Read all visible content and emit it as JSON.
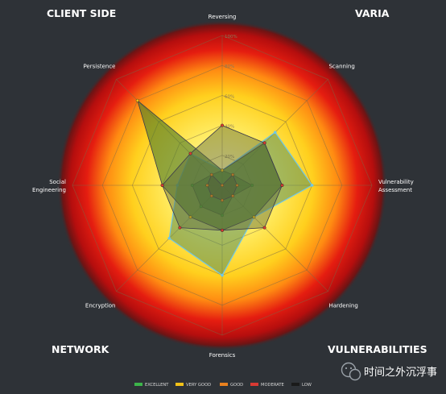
{
  "chart_data": {
    "type": "radar",
    "axes": [
      "Reversing",
      "Scanning",
      "Vulnerability\nAssessment",
      "Hardening",
      "Forensics",
      "Encryption",
      "Social\nEngineering",
      "Persistence"
    ],
    "ring_labels": [
      "20%",
      "40%",
      "60%",
      "80%",
      "100%"
    ],
    "rmax": 100,
    "series": [
      {
        "name": "EXCELLENT",
        "color": "#3cb54a",
        "values": [
          10,
          10,
          20,
          10,
          20,
          20,
          20,
          10
        ]
      },
      {
        "name": "VERY GOOD",
        "color": "#f2c118",
        "values": [
          10,
          40,
          40,
          30,
          30,
          30,
          40,
          80
        ]
      },
      {
        "name": "GOOD",
        "color": "#e8801e",
        "values": [
          0,
          10,
          10,
          10,
          10,
          10,
          10,
          10
        ]
      },
      {
        "name": "MODERATE",
        "color": "#d83a33",
        "values": [
          40,
          40,
          40,
          40,
          30,
          40,
          40,
          30
        ]
      },
      {
        "name": "LOW",
        "color": "#1a1a1a",
        "values": [
          0,
          0,
          0,
          0,
          0,
          0,
          0,
          0
        ]
      }
    ],
    "highlight_series": {
      "color": "#6fc6e6",
      "values": [
        10,
        50,
        60,
        30,
        60,
        50,
        30,
        30
      ]
    },
    "grid": true,
    "legend": "bottom"
  },
  "corners": {
    "client_side": "CLIENT SIDE",
    "varia": "VARIA",
    "network": "NETWORK",
    "vulnerabilities": "VULNERABILITIES"
  },
  "watermark": {
    "text": "时间之外沉浮事",
    "icon": "wechat-icon"
  },
  "colors": {
    "background": "#2e3237",
    "grid": "#7a6a48"
  }
}
